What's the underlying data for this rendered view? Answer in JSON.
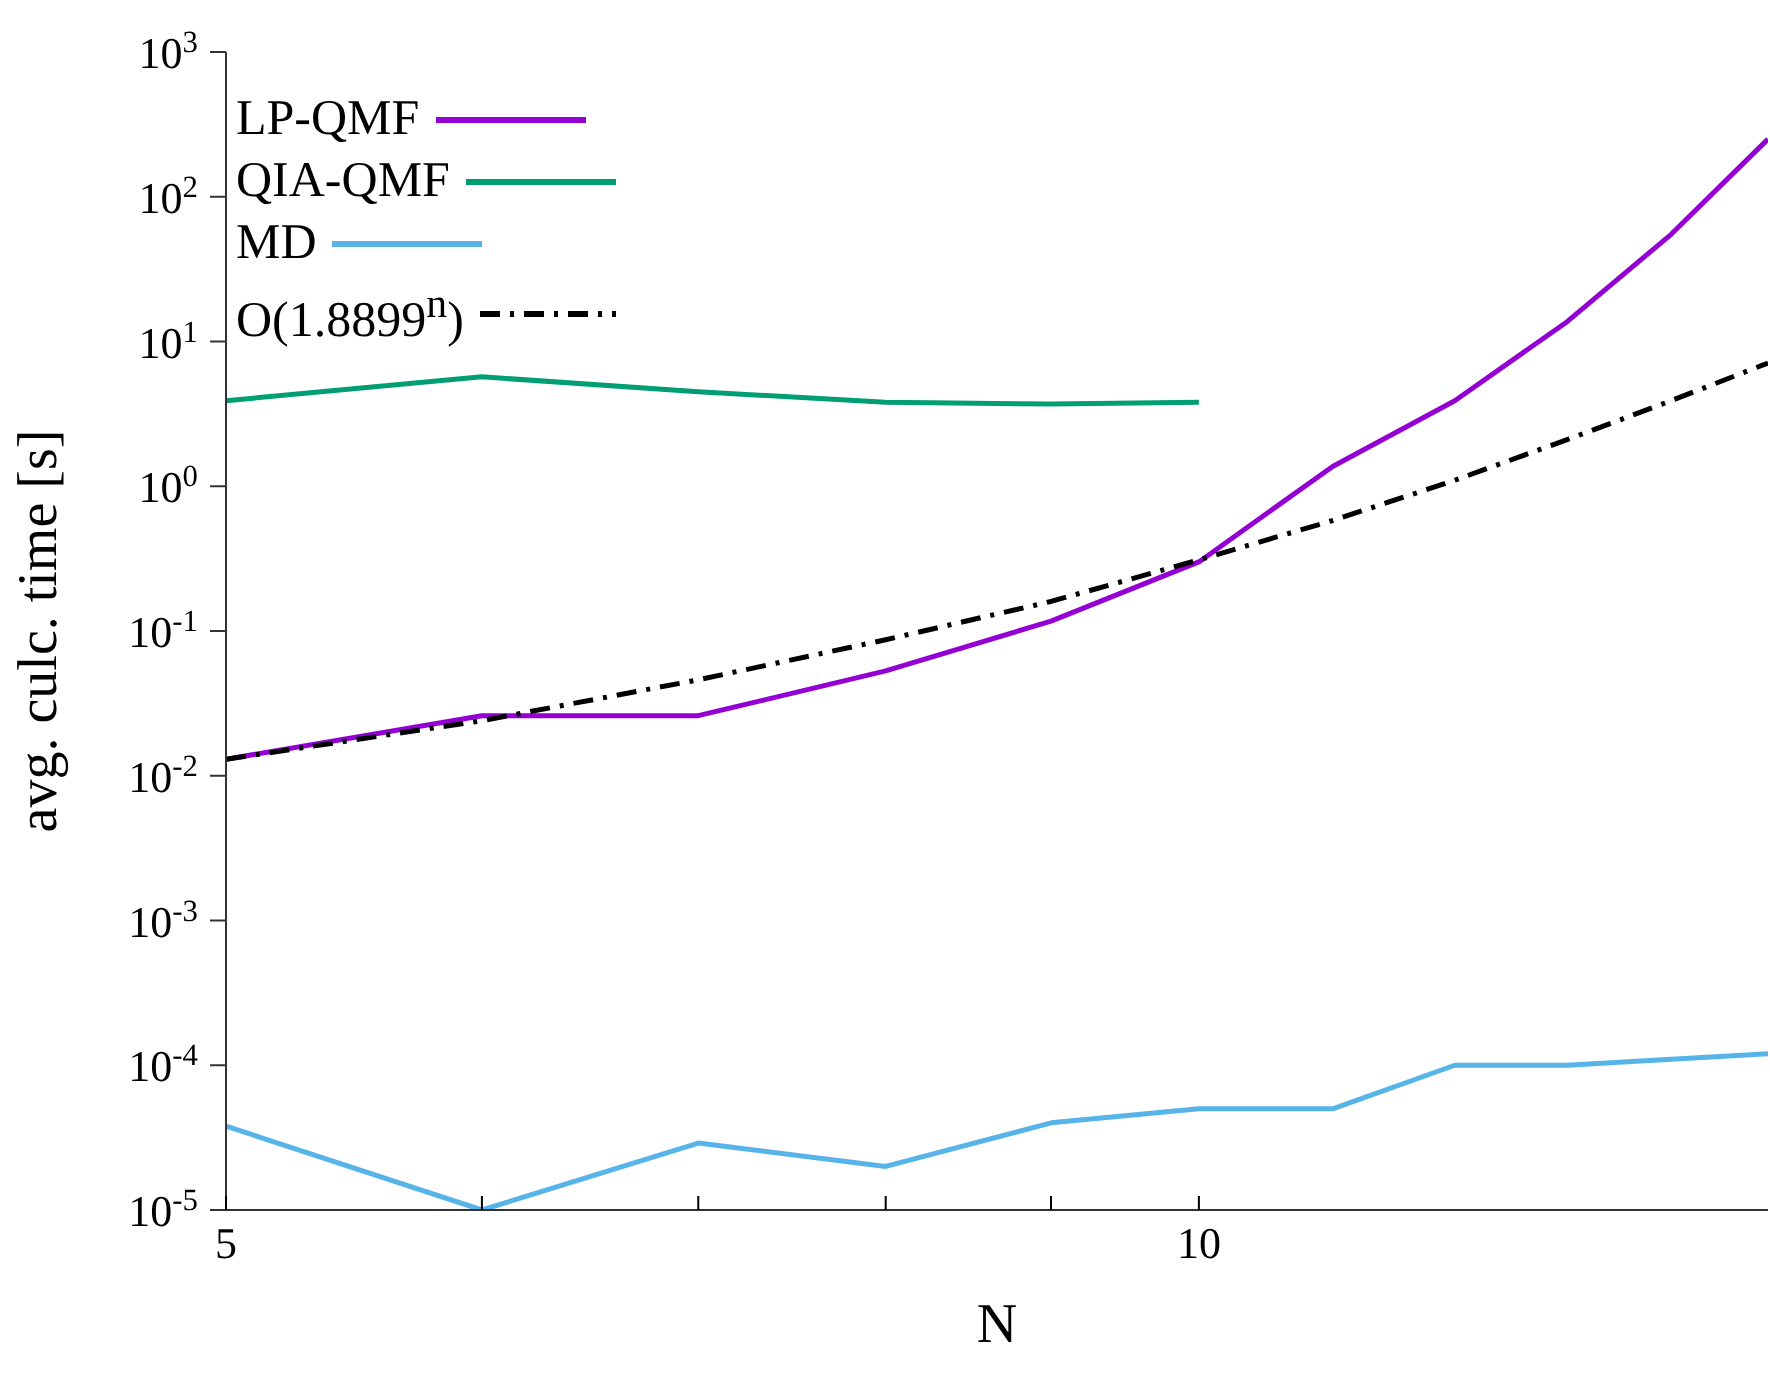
{
  "chart_data": {
    "type": "line",
    "xlabel": "N",
    "ylabel": "avg. culc. time [s]",
    "x": [
      5,
      6,
      7,
      8,
      9,
      10,
      11,
      12,
      13,
      14,
      15
    ],
    "series": [
      {
        "name": "LP-QMF",
        "color": "#9400d3",
        "values": [
          0.013,
          0.026,
          0.026,
          0.053,
          0.117,
          0.3,
          1.37,
          3.9,
          13.7,
          55,
          250
        ]
      },
      {
        "name": "QIA-QMF",
        "color": "#009e73",
        "values": [
          3.9,
          5.7,
          4.5,
          3.8,
          3.7,
          3.8,
          null,
          null,
          null,
          null,
          null
        ]
      },
      {
        "name": "MD",
        "color": "#56b4e9",
        "values": [
          3.8e-05,
          1e-05,
          2.9e-05,
          2e-05,
          4e-05,
          5e-05,
          5e-05,
          0.0001,
          0.0001,
          0.00011,
          0.00012
        ]
      },
      {
        "name": "O(1.8899$^{n}$)",
        "color": "#000000",
        "line_style": "dashed",
        "values": [
          0.013,
          0.024,
          0.046,
          0.087,
          0.16,
          0.31,
          0.58,
          1.1,
          2.1,
          3.9,
          7.1
        ]
      }
    ],
    "log": "xy",
    "xlim": [
      5,
      15
    ],
    "xticks": [
      5,
      {
        "value": 6,
        "label": null
      },
      {
        "value": 7,
        "label": null
      },
      {
        "value": 8,
        "label": null
      },
      {
        "value": 9,
        "label": null
      },
      10
    ],
    "ylim": [
      1e-05,
      1000
    ],
    "yticks": [
      {
        "value": 1e-05,
        "label": "10$^{-5}$"
      },
      {
        "value": 0.0001,
        "label": "10$^{-4}$"
      },
      {
        "value": 0.001,
        "label": "10$^{-3}$"
      },
      {
        "value": 0.01,
        "label": "10$^{-2}$"
      },
      {
        "value": 0.1,
        "label": "10$^{-1}$"
      },
      {
        "value": 1,
        "label": "10$^{0}$"
      },
      {
        "value": 10,
        "label": "10$^{1}$"
      },
      {
        "value": 100,
        "label": "10$^{2}$"
      },
      {
        "value": 1000,
        "label": "10$^{3}$"
      }
    ],
    "grid": false,
    "legend": "top left",
    "marker": "none",
    "line_style": "solid"
  }
}
